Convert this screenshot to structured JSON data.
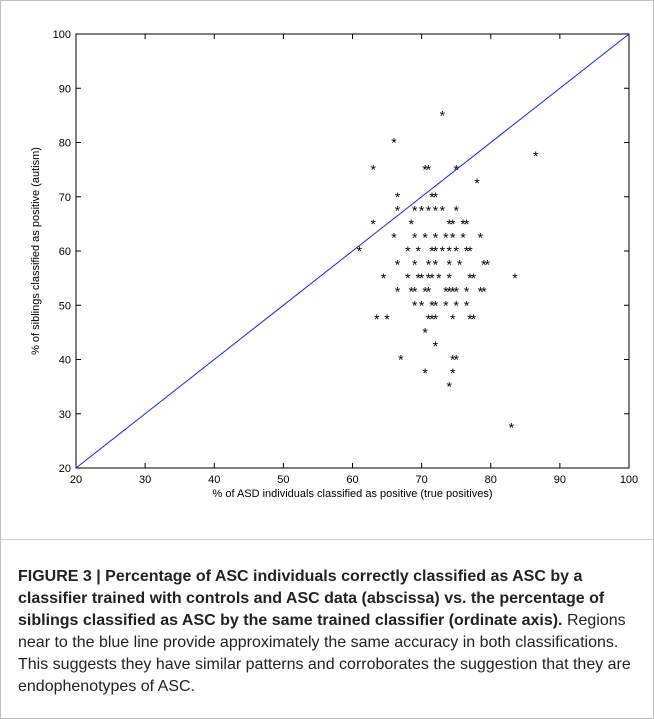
{
  "chart_data": {
    "type": "scatter",
    "xlabel": "% of ASD individuals classified as positive (true positives)",
    "ylabel": "% of siblings classified as positive (autism)",
    "xlim": [
      20,
      100
    ],
    "ylim": [
      20,
      100
    ],
    "xticks": [
      "20",
      "30",
      "40",
      "50",
      "60",
      "70",
      "80",
      "90",
      "100"
    ],
    "yticks": [
      "20",
      "30",
      "40",
      "50",
      "60",
      "70",
      "80",
      "90",
      "100"
    ],
    "marker": "*",
    "reference_line": {
      "x": [
        20,
        100
      ],
      "y": [
        20,
        100
      ],
      "color": "#1f1fff"
    },
    "points": [
      [
        73,
        85
      ],
      [
        66,
        80
      ],
      [
        86.5,
        77.5
      ],
      [
        63,
        75
      ],
      [
        70.5,
        75
      ],
      [
        71,
        75
      ],
      [
        75,
        75
      ],
      [
        78,
        72.5
      ],
      [
        66.5,
        70
      ],
      [
        71.5,
        70
      ],
      [
        72,
        70
      ],
      [
        66.5,
        67.5
      ],
      [
        69,
        67.5
      ],
      [
        70,
        67.5
      ],
      [
        71,
        67.5
      ],
      [
        72,
        67.5
      ],
      [
        73,
        67.5
      ],
      [
        75,
        67.5
      ],
      [
        68.5,
        65
      ],
      [
        63,
        65
      ],
      [
        74,
        65
      ],
      [
        74.5,
        65
      ],
      [
        76,
        65
      ],
      [
        76.5,
        65
      ],
      [
        66,
        62.5
      ],
      [
        69,
        62.5
      ],
      [
        70.5,
        62.5
      ],
      [
        72,
        62.5
      ],
      [
        73.5,
        62.5
      ],
      [
        74.5,
        62.5
      ],
      [
        76,
        62.5
      ],
      [
        78.5,
        62.5
      ],
      [
        61,
        60
      ],
      [
        68,
        60
      ],
      [
        69.5,
        60
      ],
      [
        71.5,
        60
      ],
      [
        72,
        60
      ],
      [
        73,
        60
      ],
      [
        74,
        60
      ],
      [
        75,
        60
      ],
      [
        76.5,
        60
      ],
      [
        77,
        60
      ],
      [
        66.5,
        57.5
      ],
      [
        69,
        57.5
      ],
      [
        71,
        57.5
      ],
      [
        72,
        57.5
      ],
      [
        74,
        57.5
      ],
      [
        75.5,
        57.5
      ],
      [
        79,
        57.5
      ],
      [
        79.5,
        57.5
      ],
      [
        64.5,
        55
      ],
      [
        68,
        55
      ],
      [
        69.5,
        55
      ],
      [
        70,
        55
      ],
      [
        71,
        55
      ],
      [
        71.5,
        55
      ],
      [
        72.5,
        55
      ],
      [
        74,
        55
      ],
      [
        77,
        55
      ],
      [
        77.5,
        55
      ],
      [
        83.5,
        55
      ],
      [
        66.5,
        52.5
      ],
      [
        68.5,
        52.5
      ],
      [
        69,
        52.5
      ],
      [
        70.5,
        52.5
      ],
      [
        71,
        52.5
      ],
      [
        73.5,
        52.5
      ],
      [
        74,
        52.5
      ],
      [
        74.5,
        52.5
      ],
      [
        75,
        52.5
      ],
      [
        76.5,
        52.5
      ],
      [
        78.5,
        52.5
      ],
      [
        79,
        52.5
      ],
      [
        69,
        50
      ],
      [
        70,
        50
      ],
      [
        71.5,
        50
      ],
      [
        72,
        50
      ],
      [
        73.5,
        50
      ],
      [
        75,
        50
      ],
      [
        76.5,
        50
      ],
      [
        63.5,
        47.5
      ],
      [
        65,
        47.5
      ],
      [
        71,
        47.5
      ],
      [
        71.5,
        47.5
      ],
      [
        72,
        47.5
      ],
      [
        74.5,
        47.5
      ],
      [
        77,
        47.5
      ],
      [
        77.5,
        47.5
      ],
      [
        70.5,
        45
      ],
      [
        72,
        42.5
      ],
      [
        67,
        40
      ],
      [
        74.5,
        40
      ],
      [
        75,
        40
      ],
      [
        70.5,
        37.5
      ],
      [
        74.5,
        37.5
      ],
      [
        74,
        35
      ],
      [
        83,
        27.5
      ]
    ]
  },
  "caption": {
    "bold": "FIGURE 3 | Percentage of ASC individuals correctly classified as ASC by a classifier trained with controls and ASC data (abscissa) vs. the percentage of siblings classified as ASC by the same trained classifier (ordinate axis).",
    "text": " Regions near to the blue line provide approximately the same accuracy in both classifications. This suggests they have similar patterns and corroborates the suggestion that they are endophenotypes of ASC."
  }
}
